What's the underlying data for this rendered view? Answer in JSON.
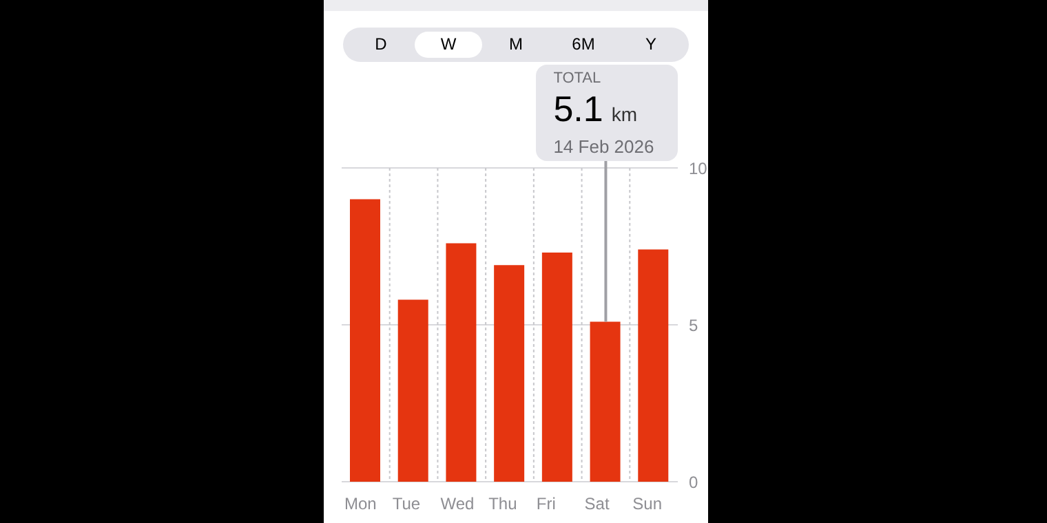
{
  "chart_data": {
    "type": "bar",
    "categories": [
      "Mon",
      "Tue",
      "Wed",
      "Thu",
      "Fri",
      "Sat",
      "Sun"
    ],
    "values": [
      9.0,
      5.8,
      7.6,
      6.9,
      7.3,
      5.1,
      7.4
    ],
    "color": "#e53510",
    "ylim": [
      0,
      10
    ],
    "yticks": [
      0,
      5,
      10
    ],
    "grid": true,
    "annotations": [
      "D",
      "W",
      "M",
      "6M",
      "Y",
      "TOTAL",
      "5.1 km",
      "14 Feb 2026"
    ]
  }
}
